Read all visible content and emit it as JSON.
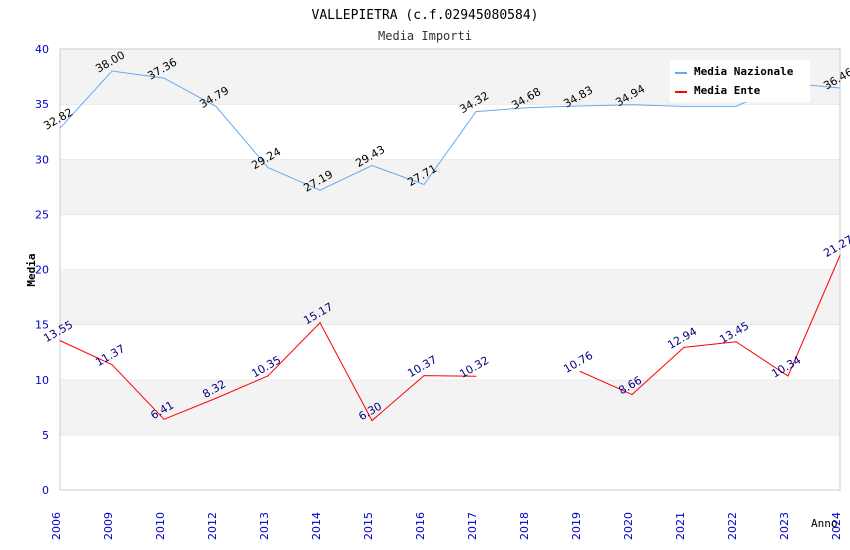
{
  "chart_data": {
    "type": "line",
    "title": "VALLEPIETRA (c.f.02945080584)",
    "subtitle": "Media Importi",
    "xlabel": "Anno",
    "ylabel": "Media",
    "ylim": [
      0,
      40
    ],
    "yticks": [
      "0",
      "5",
      "10",
      "15",
      "20",
      "25",
      "30",
      "35",
      "40"
    ],
    "categories": [
      "2006",
      "2009",
      "2010",
      "2012",
      "2013",
      "2014",
      "2015",
      "2016",
      "2017",
      "2018",
      "2019",
      "2020",
      "2021",
      "2022",
      "2023",
      "2024"
    ],
    "grid": true,
    "legend_position": "top-right",
    "series": [
      {
        "name": "Media Nazionale",
        "color": "#66aaee",
        "values": [
          32.82,
          38.0,
          37.36,
          34.79,
          29.24,
          27.19,
          29.43,
          27.71,
          34.32,
          34.68,
          34.83,
          34.94,
          34.8,
          34.8,
          36.9,
          36.46
        ],
        "labels": [
          "32.82",
          "38.00",
          "37.36",
          "34.79",
          "29.24",
          "27.19",
          "29.43",
          "27.71",
          "34.32",
          "34.68",
          "34.83",
          "34.94",
          "",
          "",
          "",
          "36.46"
        ],
        "label_color": "#000000"
      },
      {
        "name": "Media Ente",
        "color": "#ff0000",
        "values": [
          13.55,
          11.37,
          6.41,
          8.32,
          10.35,
          15.17,
          6.3,
          10.37,
          10.32,
          null,
          10.76,
          8.66,
          12.94,
          13.45,
          10.34,
          21.27
        ],
        "labels": [
          "13.55",
          "11.37",
          "6.41",
          "8.32",
          "10.35",
          "15.17",
          "6.30",
          "10.37",
          "10.32",
          "",
          "10.76",
          "8.66",
          "12.94",
          "13.45",
          "10.34",
          "21.27"
        ],
        "label_color": "#000080"
      }
    ]
  }
}
